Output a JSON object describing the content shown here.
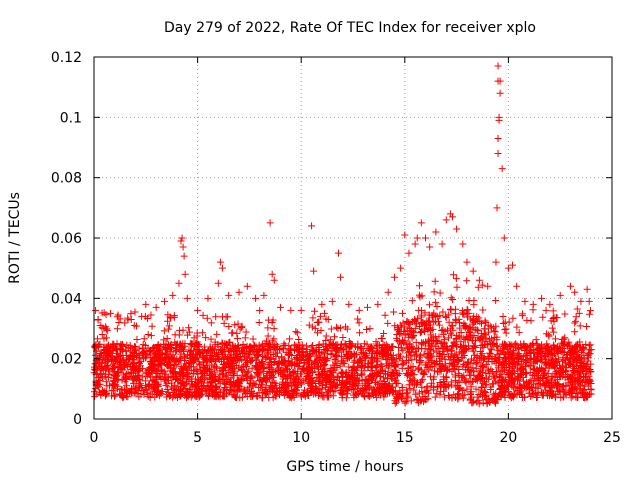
{
  "chart_data": {
    "type": "scatter",
    "title": "Day 279 of 2022, Rate Of TEC Index for receiver xplo",
    "xlabel": "GPS time / hours",
    "ylabel": "ROTI / TECUs",
    "xlim": [
      0,
      25
    ],
    "ylim": [
      0,
      0.12
    ],
    "x_ticks": [
      0,
      5,
      10,
      15,
      20,
      25
    ],
    "y_ticks": [
      0,
      0.02,
      0.04,
      0.06,
      0.08,
      0.1,
      0.12
    ],
    "x_tick_labels": [
      "0",
      "5",
      "10",
      "15",
      "20",
      "25"
    ],
    "y_tick_labels": [
      "0",
      "0.02",
      "0.04",
      "0.06",
      "0.08",
      "0.1",
      "0.12"
    ],
    "grid": true,
    "marker": "plus",
    "series_color": "#ff0000",
    "series": [
      {
        "name": "ROTI",
        "points": [
          [
            0.2,
            0.033
          ],
          [
            0.3,
            0.031
          ],
          [
            0.4,
            0.028
          ],
          [
            0.8,
            0.035
          ],
          [
            1.2,
            0.032
          ],
          [
            1.8,
            0.033
          ],
          [
            2.3,
            0.034
          ],
          [
            2.5,
            0.038
          ],
          [
            3.0,
            0.037
          ],
          [
            3.4,
            0.039
          ],
          [
            3.8,
            0.041
          ],
          [
            4.1,
            0.045
          ],
          [
            4.2,
            0.059
          ],
          [
            4.25,
            0.06
          ],
          [
            4.3,
            0.057
          ],
          [
            4.35,
            0.054
          ],
          [
            4.4,
            0.048
          ],
          [
            4.5,
            0.04
          ],
          [
            5.0,
            0.036
          ],
          [
            5.5,
            0.04
          ],
          [
            6.0,
            0.045
          ],
          [
            6.1,
            0.052
          ],
          [
            6.2,
            0.05
          ],
          [
            6.5,
            0.041
          ],
          [
            7.0,
            0.042
          ],
          [
            7.4,
            0.044
          ],
          [
            7.8,
            0.04
          ],
          [
            8.2,
            0.041
          ],
          [
            8.5,
            0.065
          ],
          [
            8.6,
            0.048
          ],
          [
            8.7,
            0.046
          ],
          [
            9.0,
            0.037
          ],
          [
            9.5,
            0.036
          ],
          [
            10.0,
            0.036
          ],
          [
            10.5,
            0.064
          ],
          [
            10.6,
            0.049
          ],
          [
            11.0,
            0.038
          ],
          [
            11.5,
            0.039
          ],
          [
            11.8,
            0.055
          ],
          [
            11.9,
            0.047
          ],
          [
            12.3,
            0.038
          ],
          [
            12.8,
            0.036
          ],
          [
            13.2,
            0.037
          ],
          [
            13.7,
            0.038
          ],
          [
            14.2,
            0.042
          ],
          [
            14.5,
            0.047
          ],
          [
            14.8,
            0.05
          ],
          [
            15.0,
            0.061
          ],
          [
            15.2,
            0.055
          ],
          [
            15.5,
            0.058
          ],
          [
            15.6,
            0.06
          ],
          [
            15.8,
            0.065
          ],
          [
            16.0,
            0.06
          ],
          [
            16.2,
            0.057
          ],
          [
            16.5,
            0.062
          ],
          [
            16.8,
            0.058
          ],
          [
            17.0,
            0.066
          ],
          [
            17.2,
            0.068
          ],
          [
            17.3,
            0.067
          ],
          [
            17.5,
            0.063
          ],
          [
            17.8,
            0.058
          ],
          [
            18.0,
            0.052
          ],
          [
            18.3,
            0.049
          ],
          [
            18.6,
            0.046
          ],
          [
            19.0,
            0.044
          ],
          [
            19.4,
            0.052
          ],
          [
            19.45,
            0.07
          ],
          [
            19.5,
            0.088
          ],
          [
            19.5,
            0.093
          ],
          [
            19.55,
            0.099
          ],
          [
            19.55,
            0.1
          ],
          [
            19.6,
            0.108
          ],
          [
            19.5,
            0.112
          ],
          [
            19.6,
            0.112
          ],
          [
            19.5,
            0.117
          ],
          [
            19.7,
            0.083
          ],
          [
            19.8,
            0.06
          ],
          [
            20.0,
            0.05
          ],
          [
            20.2,
            0.051
          ],
          [
            20.4,
            0.044
          ],
          [
            20.8,
            0.039
          ],
          [
            21.2,
            0.038
          ],
          [
            21.6,
            0.04
          ],
          [
            22.0,
            0.038
          ],
          [
            22.5,
            0.041
          ],
          [
            23.0,
            0.044
          ],
          [
            23.2,
            0.042
          ],
          [
            23.5,
            0.039
          ],
          [
            23.8,
            0.043
          ],
          [
            23.9,
            0.039
          ]
        ]
      }
    ]
  }
}
